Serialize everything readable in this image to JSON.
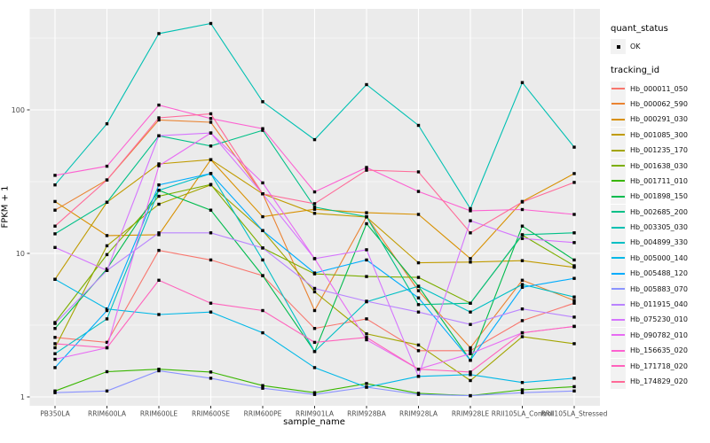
{
  "figure": {
    "y_axis": {
      "title": "FPKM + 1"
    },
    "x_axis": {
      "title": "sample_name"
    },
    "legend": {
      "quant_status_title": "quant_status",
      "ok_label": "OK",
      "tracking_id_title": "tracking_id"
    }
  },
  "colors": {
    "panel_bg": "#EBEBEB",
    "grid": "#FFFFFF",
    "legend_key_bg": "#F2F2F2",
    "axis_text": "#4D4D4D",
    "tick": "#333333",
    "point": "#000000"
  },
  "chart_data": {
    "type": "line",
    "title": "",
    "xlabel": "sample_name",
    "ylabel": "FPKM + 1",
    "y_scale": "log10",
    "y_ticks": [
      1,
      10,
      100
    ],
    "y_minor_ticks": [
      3.162,
      31.62,
      316.2
    ],
    "ylim": [
      1,
      500
    ],
    "grid": true,
    "legend_position": "right",
    "quant_status": "OK",
    "x": [
      "PB350LA",
      "RRIM600LA",
      "RRIM600LE",
      "RRIM600SE",
      "RRIM600PE",
      "RRIM901LA",
      "RRIM928BA",
      "RRIM928LA",
      "RRIM928LE",
      "RRII105LA_Control",
      "RRII105LA_Stressed"
    ],
    "series": [
      {
        "name": "Hb_000011_050",
        "color": "#F8766D",
        "values": [
          2.6,
          2.4,
          10.5,
          9.0,
          7.0,
          3.0,
          3.5,
          2.1,
          2.1,
          3.4,
          4.5
        ]
      },
      {
        "name": "Hb_000062_590",
        "color": "#EA8331",
        "values": [
          20,
          32.5,
          85,
          82,
          26,
          4.0,
          18,
          5.5,
          2.2,
          6.5,
          4.7
        ]
      },
      {
        "name": "Hb_000291_030",
        "color": "#D89000",
        "values": [
          23,
          13.3,
          13.5,
          45,
          18,
          20.3,
          19.2,
          18.7,
          9.2,
          23,
          36
        ]
      },
      {
        "name": "Hb_001085_300",
        "color": "#C09B00",
        "values": [
          6.6,
          22.7,
          42,
          45,
          26,
          19,
          17.9,
          8.6,
          8.7,
          8.9,
          8.0
        ]
      },
      {
        "name": "Hb_001235_170",
        "color": "#A3A500",
        "values": [
          2.2,
          11.3,
          22,
          30,
          14.4,
          5.4,
          2.75,
          2.3,
          1.3,
          2.63,
          2.35
        ]
      },
      {
        "name": "Hb_001638_030",
        "color": "#7CAE00",
        "values": [
          3.3,
          9.8,
          25,
          30.2,
          10.9,
          7.2,
          6.9,
          6.8,
          4.5,
          13.4,
          8.2
        ]
      },
      {
        "name": "Hb_001711_010",
        "color": "#39B600",
        "values": [
          1.1,
          1.5,
          1.56,
          1.49,
          1.2,
          1.07,
          1.24,
          1.06,
          1.02,
          1.12,
          1.18
        ]
      },
      {
        "name": "Hb_001898_150",
        "color": "#00BB4E",
        "values": [
          3.0,
          7.8,
          27.5,
          20,
          7.0,
          2.07,
          16.1,
          5.9,
          1.8,
          15.5,
          9.0
        ]
      },
      {
        "name": "Hb_002685_200",
        "color": "#00C087",
        "values": [
          13.7,
          22.7,
          66,
          56,
          72,
          21,
          18,
          4.4,
          4.5,
          13.5,
          13.9
        ]
      },
      {
        "name": "Hb_003305_030",
        "color": "#00C0B2",
        "values": [
          30,
          80,
          340,
          400,
          114,
          62,
          150,
          78,
          20.5,
          155,
          55
        ]
      },
      {
        "name": "Hb_004899_330",
        "color": "#00BFC4",
        "values": [
          2.0,
          3.5,
          27.5,
          36,
          9.0,
          2.07,
          4.6,
          5.9,
          3.9,
          6.07,
          4.97
        ]
      },
      {
        "name": "Hb_005000_140",
        "color": "#00B8E7",
        "values": [
          6.6,
          4.1,
          3.75,
          3.9,
          2.8,
          1.6,
          1.17,
          1.39,
          1.43,
          1.26,
          1.35
        ]
      },
      {
        "name": "Hb_005488_120",
        "color": "#00ACFC",
        "values": [
          1.6,
          4.0,
          30,
          36,
          14.4,
          7.3,
          9.0,
          4.9,
          1.8,
          5.8,
          6.7
        ]
      },
      {
        "name": "Hb_005883_070",
        "color": "#8B93FF",
        "values": [
          1.07,
          1.1,
          1.52,
          1.35,
          1.15,
          1.04,
          1.17,
          1.04,
          1.02,
          1.07,
          1.1
        ]
      },
      {
        "name": "Hb_011915_040",
        "color": "#B983FF",
        "values": [
          3.25,
          7.6,
          13.9,
          13.9,
          10.9,
          5.7,
          4.64,
          3.9,
          3.2,
          4.1,
          3.6
        ]
      },
      {
        "name": "Hb_075230_010",
        "color": "#D575FE",
        "values": [
          11,
          7.6,
          66,
          69,
          26,
          9.2,
          10.6,
          1.39,
          16.9,
          12.7,
          11.9
        ]
      },
      {
        "name": "Hb_090782_010",
        "color": "#E76BF3",
        "values": [
          1.83,
          2.2,
          40.8,
          69,
          31,
          9.2,
          2.5,
          1.56,
          2.0,
          2.8,
          3.1
        ]
      },
      {
        "name": "Hb_156635_020",
        "color": "#FD61D1",
        "values": [
          35,
          40.5,
          108,
          87,
          74,
          26.8,
          39.7,
          27,
          19.8,
          20.2,
          18.7
        ]
      },
      {
        "name": "Hb_171718_020",
        "color": "#FF62BC",
        "values": [
          2.35,
          2.2,
          6.5,
          4.5,
          4.0,
          2.4,
          2.6,
          1.56,
          1.49,
          2.8,
          3.1
        ]
      },
      {
        "name": "Hb_174829_020",
        "color": "#FF6A98",
        "values": [
          15.5,
          32.5,
          88,
          94,
          26,
          22.2,
          38,
          37,
          13.9,
          22.8,
          31.2
        ]
      }
    ]
  }
}
